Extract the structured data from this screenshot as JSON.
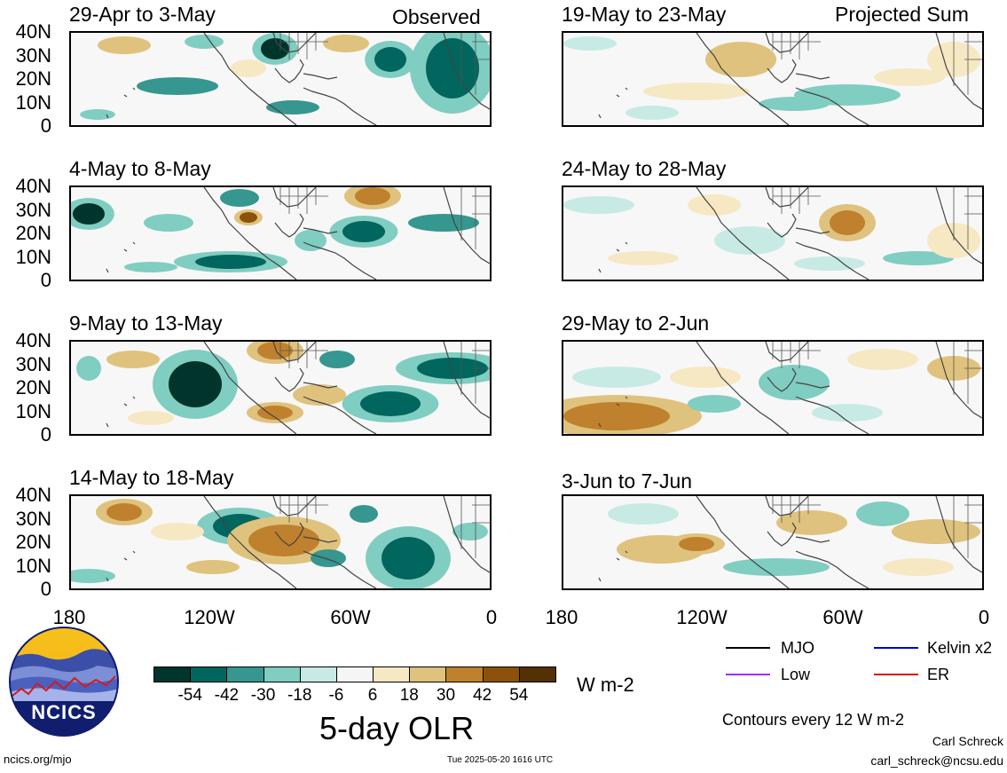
{
  "header": {
    "observed_label": "Observed",
    "projected_label": "Projected Sum"
  },
  "panels_left": [
    {
      "title": "29-Apr to 3-May"
    },
    {
      "title": "4-May to 8-May"
    },
    {
      "title": "9-May to 13-May"
    },
    {
      "title": "14-May to 18-May"
    }
  ],
  "panels_right": [
    {
      "title": "19-May to 23-May"
    },
    {
      "title": "24-May to 28-May"
    },
    {
      "title": "29-May to 2-Jun"
    },
    {
      "title": "3-Jun to 7-Jun"
    }
  ],
  "y_ticks": [
    "40N",
    "30N",
    "20N",
    "10N",
    "0"
  ],
  "x_ticks": [
    "180",
    "120W",
    "60W",
    "0"
  ],
  "colorbar": {
    "colors": [
      "#01352c",
      "#01665e",
      "#35978f",
      "#80cdc1",
      "#c7eae5",
      "#f5f5f5",
      "#f6e8c3",
      "#dfc27d",
      "#bf812d",
      "#8c510a",
      "#543005"
    ],
    "labels": [
      "-54",
      "-42",
      "-30",
      "-18",
      "-6",
      "6",
      "18",
      "30",
      "42",
      "54"
    ],
    "units": "W m-2",
    "title": "5-day OLR"
  },
  "legend": {
    "items": [
      {
        "label": "MJO",
        "color": "#000000"
      },
      {
        "label": "Kelvin x2",
        "color": "#0000cc"
      },
      {
        "label": "Low",
        "color": "#9b30ff"
      },
      {
        "label": "ER",
        "color": "#dd0000"
      }
    ],
    "contour_note": "Contours every 12 W m-2"
  },
  "footer": {
    "logo_text": "NCICS",
    "url": "ncics.org/mjo",
    "timestamp": "Tue 2025-05-20 1616 UTC",
    "author": "Carl Schreck",
    "email": "carl_schreck@ncsu.edu"
  }
}
